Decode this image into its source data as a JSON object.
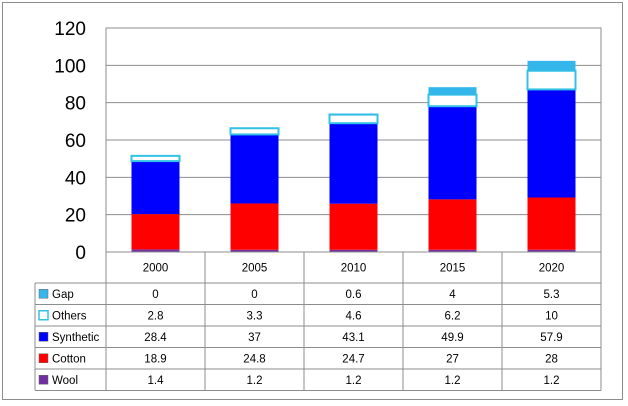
{
  "chart_data": {
    "type": "bar",
    "stacked": true,
    "categories": [
      "2000",
      "2005",
      "2010",
      "2015",
      "2020"
    ],
    "series": [
      {
        "name": "Wool",
        "values": [
          1.4,
          1.2,
          1.2,
          1.2,
          1.2
        ],
        "color": "#7030a0"
      },
      {
        "name": "Cotton",
        "values": [
          18.9,
          24.8,
          24.7,
          27,
          28
        ],
        "color": "#ff0000"
      },
      {
        "name": "Synthetic",
        "values": [
          28.4,
          37,
          43.1,
          49.9,
          57.9
        ],
        "color": "#0000ff"
      },
      {
        "name": "Others",
        "values": [
          2.8,
          3.3,
          4.6,
          6.2,
          10
        ],
        "color": "#ffffff",
        "stroke": "#33c2e6"
      },
      {
        "name": "Gap",
        "values": [
          0,
          0,
          0.6,
          4,
          5.3
        ],
        "color": "#33b7ea"
      }
    ],
    "table_rows": [
      {
        "name": "Gap",
        "cells": [
          "0",
          "0",
          "0.6",
          "4",
          "5.3"
        ]
      },
      {
        "name": "Others",
        "cells": [
          "2.8",
          "3.3",
          "4.6",
          "6.2",
          "10"
        ]
      },
      {
        "name": "Synthetic",
        "cells": [
          "28.4",
          "37",
          "43.1",
          "49.9",
          "57.9"
        ]
      },
      {
        "name": "Cotton",
        "cells": [
          "18.9",
          "24.8",
          "24.7",
          "27",
          "28"
        ]
      },
      {
        "name": "Wool",
        "cells": [
          "1.4",
          "1.2",
          "1.2",
          "1.2",
          "1.2"
        ]
      }
    ],
    "yticks": [
      "0",
      "20",
      "40",
      "60",
      "80",
      "100",
      "120"
    ],
    "ylim": [
      0,
      120
    ],
    "grid": true,
    "legend": "data-table-left",
    "title": "",
    "xlabel": "",
    "ylabel": ""
  }
}
